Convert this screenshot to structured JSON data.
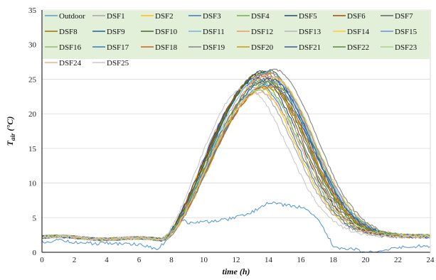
{
  "chart_data": {
    "type": "line",
    "xlabel": "time (h)",
    "ylabel_main": "T",
    "ylabel_sub": "air",
    "ylabel_unit": " (°C)",
    "xlim": [
      0,
      24
    ],
    "ylim": [
      0,
      35
    ],
    "xticks": [
      "0",
      "2",
      "4",
      "6",
      "8",
      "10",
      "12",
      "14",
      "16",
      "18",
      "20",
      "22",
      "24"
    ],
    "yticks": [
      "0",
      "5",
      "10",
      "15",
      "20",
      "25",
      "30",
      "35"
    ],
    "grid": "horizontal",
    "legend_position": "top",
    "legend_background": "#e2efd9",
    "series": [
      {
        "name": "Outdoor",
        "color": "#5b9bd5",
        "x": [
          0,
          1,
          2,
          3,
          4,
          5,
          6,
          7,
          7.3,
          8,
          8.7,
          9,
          10,
          11,
          12,
          13,
          13.5,
          14,
          14.5,
          15,
          16,
          16.5,
          17,
          17.5,
          18,
          18.5,
          19,
          19.5,
          20,
          21,
          22,
          23,
          24
        ],
        "y": [
          1.5,
          1.7,
          1.4,
          1.3,
          1.3,
          1.2,
          1.1,
          0.5,
          0.8,
          2.5,
          4.8,
          4.2,
          4.4,
          4.6,
          5.0,
          5.8,
          6.6,
          7.2,
          7.0,
          6.8,
          6.5,
          6.0,
          5.0,
          3.0,
          1.0,
          0.6,
          0.6,
          0.3,
          0.1,
          0.3,
          0.6,
          0.9,
          0.8
        ]
      },
      {
        "name": "DSF1",
        "color": "#a5a5a5",
        "offset": 0,
        "peak": 24.0,
        "peakX": 13.0
      },
      {
        "name": "DSF2",
        "color": "#ffc000",
        "offset": 0,
        "peak": 24.3,
        "peakX": 13.1
      },
      {
        "name": "DSF3",
        "color": "#4472c4",
        "offset": 0,
        "peak": 24.6,
        "peakX": 13.2
      },
      {
        "name": "DSF4",
        "color": "#70ad47",
        "offset": 0,
        "peak": 24.9,
        "peakX": 13.3
      },
      {
        "name": "DSF5",
        "color": "#264478",
        "offset": 0,
        "peak": 25.2,
        "peakX": 13.4
      },
      {
        "name": "DSF6",
        "color": "#9e480e",
        "offset": 0,
        "peak": 25.5,
        "peakX": 13.5
      },
      {
        "name": "DSF7",
        "color": "#636363",
        "offset": 0,
        "peak": 25.8,
        "peakX": 13.6
      },
      {
        "name": "DSF8",
        "color": "#997300",
        "offset": 0,
        "peak": 26.0,
        "peakX": 13.7
      },
      {
        "name": "DSF9",
        "color": "#255e91",
        "offset": 0,
        "peak": 26.2,
        "peakX": 13.8
      },
      {
        "name": "DSF10",
        "color": "#43682b",
        "offset": 0,
        "peak": 26.3,
        "peakX": 13.9
      },
      {
        "name": "DSF11",
        "color": "#7cafdd",
        "offset": 0,
        "peak": 26.0,
        "peakX": 14.0
      },
      {
        "name": "DSF12",
        "color": "#f1975a",
        "offset": 0,
        "peak": 25.7,
        "peakX": 14.1
      },
      {
        "name": "DSF13",
        "color": "#b7b7b7",
        "offset": 0,
        "peak": 25.4,
        "peakX": 14.2
      },
      {
        "name": "DSF14",
        "color": "#ffcd33",
        "offset": 0,
        "peak": 25.1,
        "peakX": 14.3
      },
      {
        "name": "DSF15",
        "color": "#698ed0",
        "offset": 0,
        "peak": 24.8,
        "peakX": 14.3
      },
      {
        "name": "DSF16",
        "color": "#8cc168",
        "offset": 0,
        "peak": 24.5,
        "peakX": 14.2
      },
      {
        "name": "DSF17",
        "color": "#327dc2",
        "offset": 0,
        "peak": 24.2,
        "peakX": 14.1
      },
      {
        "name": "DSF18",
        "color": "#d26012",
        "offset": 0,
        "peak": 24.0,
        "peakX": 14.0
      },
      {
        "name": "DSF19",
        "color": "#848484",
        "offset": 0,
        "peak": 26.3,
        "peakX": 14.4
      },
      {
        "name": "DSF20",
        "color": "#cc9a00",
        "offset": 0,
        "peak": 23.8,
        "peakX": 13.9
      },
      {
        "name": "DSF21",
        "color": "#335aa1",
        "offset": 0,
        "peak": 25.0,
        "peakX": 14.1
      },
      {
        "name": "DSF22",
        "color": "#5a8a39",
        "offset": 0,
        "peak": 24.7,
        "peakX": 13.8
      },
      {
        "name": "DSF23",
        "color": "#a9d18e",
        "offset": 0,
        "peak": 23.5,
        "peakX": 13.6
      },
      {
        "name": "DSF24",
        "color": "#f4b183",
        "offset": 0,
        "peak": 23.0,
        "peakX": 13.5
      },
      {
        "name": "DSF25",
        "color": "#c9c9c9",
        "offset": 0,
        "peak": 23.8,
        "peakX": 12.6
      }
    ]
  }
}
